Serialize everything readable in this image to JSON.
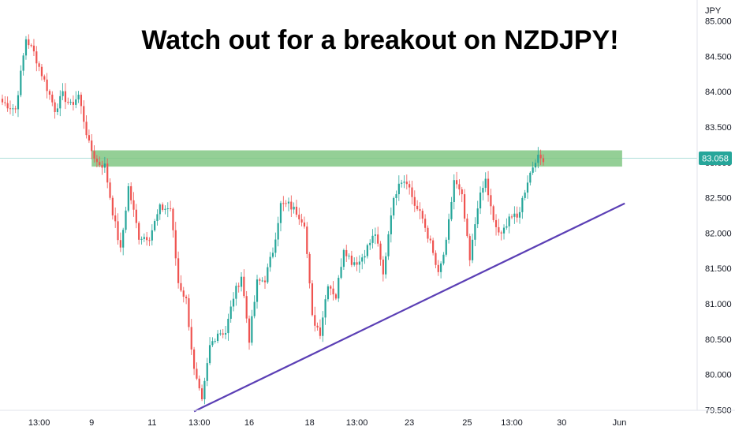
{
  "chart_data": {
    "type": "candlestick",
    "symbol": "NZDJPY",
    "title": "Watch out for a breakout on NZDJPY!",
    "currency_label": "JPY",
    "current_price_label": "83.058",
    "current_price": 83.058,
    "ylim": [
      79.35,
      85.15
    ],
    "y_ticks": [
      "85.000",
      "84.500",
      "84.000",
      "83.500",
      "83.000",
      "82.500",
      "82.000",
      "81.500",
      "81.000",
      "80.500",
      "80.000",
      "79.500"
    ],
    "y_tick_values": [
      85.0,
      84.5,
      84.0,
      83.5,
      83.0,
      82.5,
      82.0,
      81.5,
      81.0,
      80.5,
      80.0,
      79.5
    ],
    "x_ticks": [
      "13:00",
      "9",
      "11",
      "13:00",
      "16",
      "18",
      "13:00",
      "23",
      "25",
      "13:00",
      "30",
      "Jun"
    ],
    "x_tick_bars": [
      14,
      34,
      57,
      75,
      94,
      117,
      135,
      155,
      177,
      194,
      213,
      235
    ],
    "bar_count": 237,
    "resistance_zone": {
      "low": 82.94,
      "high": 83.17,
      "from_bar": 34,
      "to_bar": 236
    },
    "trendline": {
      "from_bar": 73,
      "from_price": 79.48,
      "to_bar": 237,
      "to_price": 82.42
    },
    "waypoints": [
      [
        0,
        83.85
      ],
      [
        5,
        83.75
      ],
      [
        9,
        84.75
      ],
      [
        12,
        84.55
      ],
      [
        16,
        84.15
      ],
      [
        20,
        83.75
      ],
      [
        23,
        83.95
      ],
      [
        26,
        83.8
      ],
      [
        29,
        83.95
      ],
      [
        33,
        83.25
      ],
      [
        36,
        83.0
      ],
      [
        39,
        82.95
      ],
      [
        42,
        82.3
      ],
      [
        45,
        81.75
      ],
      [
        48,
        82.65
      ],
      [
        52,
        81.95
      ],
      [
        56,
        81.95
      ],
      [
        60,
        82.35
      ],
      [
        64,
        82.35
      ],
      [
        67,
        81.3
      ],
      [
        70,
        81.05
      ],
      [
        73,
        80.05
      ],
      [
        76,
        79.6
      ],
      [
        79,
        80.4
      ],
      [
        82,
        80.6
      ],
      [
        85,
        80.6
      ],
      [
        88,
        81.1
      ],
      [
        91,
        81.4
      ],
      [
        94,
        80.5
      ],
      [
        97,
        81.3
      ],
      [
        100,
        81.35
      ],
      [
        103,
        81.75
      ],
      [
        106,
        82.4
      ],
      [
        109,
        82.4
      ],
      [
        112,
        82.3
      ],
      [
        115,
        82.15
      ],
      [
        118,
        80.8
      ],
      [
        121,
        80.6
      ],
      [
        124,
        81.3
      ],
      [
        127,
        81.1
      ],
      [
        130,
        81.8
      ],
      [
        133,
        81.6
      ],
      [
        136,
        81.6
      ],
      [
        139,
        81.8
      ],
      [
        142,
        82.0
      ],
      [
        145,
        81.4
      ],
      [
        148,
        82.3
      ],
      [
        151,
        82.75
      ],
      [
        154,
        82.75
      ],
      [
        157,
        82.4
      ],
      [
        160,
        82.2
      ],
      [
        163,
        81.85
      ],
      [
        166,
        81.4
      ],
      [
        169,
        81.85
      ],
      [
        172,
        82.75
      ],
      [
        175,
        82.5
      ],
      [
        178,
        81.6
      ],
      [
        181,
        82.4
      ],
      [
        184,
        82.75
      ],
      [
        187,
        82.15
      ],
      [
        190,
        81.95
      ],
      [
        193,
        82.25
      ],
      [
        196,
        82.2
      ],
      [
        200,
        82.75
      ],
      [
        203,
        83.05
      ],
      [
        206,
        83.06
      ]
    ]
  }
}
